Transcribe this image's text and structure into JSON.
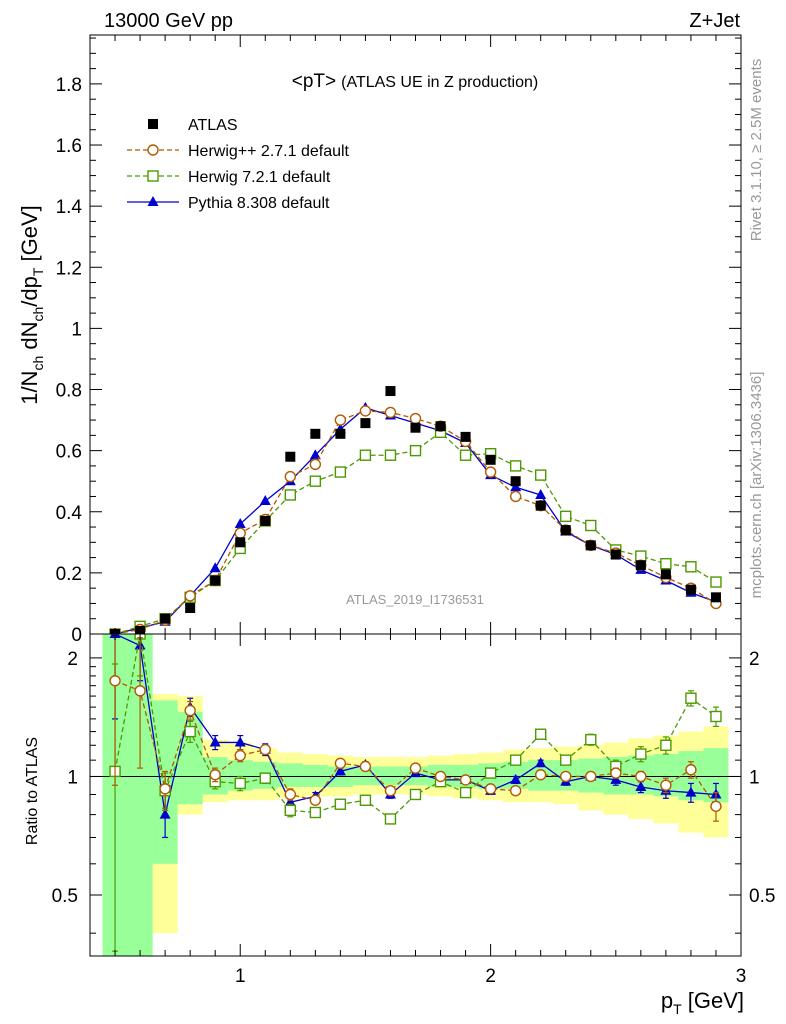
{
  "header": {
    "left": "13000 GeV pp",
    "right": "Z+Jet"
  },
  "side_text": {
    "rivet": "Rivet 3.1.10, ≥ 2.5M events",
    "mcplots": "mcplots.cern.ch [arXiv:1306.3436]"
  },
  "watermark": "ATLAS_2019_I1736531",
  "chart_data": [
    {
      "type": "scatter",
      "title": "<pT>",
      "subtitle": "(ATLAS UE in Z production)",
      "ylabel_parts": {
        "a": "1/N",
        "a_sub": "ch",
        "b": " dN",
        "b_sub": "ch",
        "c": "/dp",
        "c_sub": "T",
        "d": " [GeV]"
      },
      "xlabel": "",
      "xlim": [
        0.4,
        3.0
      ],
      "ylim": [
        0,
        1.96
      ],
      "yticks": [
        0,
        0.2,
        0.4,
        0.6,
        0.8,
        1,
        1.2,
        1.4,
        1.6,
        1.8
      ],
      "ytick_labels": [
        "0",
        "0.2",
        "0.4",
        "0.6",
        "0.8",
        "1",
        "1.2",
        "1.4",
        "1.6",
        "1.8"
      ],
      "legend": "top-left",
      "series": [
        {
          "name": "ATLAS",
          "color": "#000000",
          "marker": "filled-square",
          "line": "none",
          "x": [
            0.5,
            0.6,
            0.7,
            0.8,
            0.9,
            1.0,
            1.1,
            1.2,
            1.3,
            1.4,
            1.5,
            1.6,
            1.7,
            1.8,
            1.9,
            2.0,
            2.1,
            2.2,
            2.3,
            2.4,
            2.5,
            2.6,
            2.7,
            2.8,
            2.9
          ],
          "y": [
            0.0,
            0.01,
            0.05,
            0.085,
            0.175,
            0.3,
            0.37,
            0.58,
            0.655,
            0.655,
            0.69,
            0.795,
            0.675,
            0.68,
            0.645,
            0.57,
            0.5,
            0.42,
            0.34,
            0.29,
            0.26,
            0.225,
            0.195,
            0.145,
            0.12
          ]
        },
        {
          "name": "Herwig++ 2.7.1 default",
          "color": "#b35900",
          "marker": "open-circle",
          "line": "dashed",
          "x": [
            0.5,
            0.6,
            0.7,
            0.8,
            0.9,
            1.0,
            1.1,
            1.2,
            1.3,
            1.4,
            1.5,
            1.6,
            1.7,
            1.8,
            1.9,
            2.0,
            2.1,
            2.2,
            2.3,
            2.4,
            2.5,
            2.6,
            2.7,
            2.8,
            2.9
          ],
          "y": [
            0.0,
            0.015,
            0.045,
            0.125,
            0.175,
            0.33,
            0.375,
            0.515,
            0.555,
            0.7,
            0.73,
            0.725,
            0.705,
            0.68,
            0.63,
            0.53,
            0.45,
            0.42,
            0.34,
            0.29,
            0.265,
            0.225,
            0.185,
            0.15,
            0.1
          ]
        },
        {
          "name": "Herwig 7.2.1 default",
          "color": "#4d9900",
          "marker": "open-square",
          "line": "dashed",
          "x": [
            0.5,
            0.6,
            0.7,
            0.8,
            0.9,
            1.0,
            1.1,
            1.2,
            1.3,
            1.4,
            1.5,
            1.6,
            1.7,
            1.8,
            1.9,
            2.0,
            2.1,
            2.2,
            2.3,
            2.4,
            2.5,
            2.6,
            2.7,
            2.8,
            2.9
          ],
          "y": [
            0.0,
            0.025,
            0.05,
            0.12,
            0.175,
            0.28,
            0.37,
            0.455,
            0.5,
            0.53,
            0.585,
            0.585,
            0.6,
            0.66,
            0.585,
            0.59,
            0.55,
            0.52,
            0.385,
            0.355,
            0.275,
            0.255,
            0.23,
            0.22,
            0.17
          ]
        },
        {
          "name": "Pythia 8.308 default",
          "color": "#0000cc",
          "marker": "filled-triangle",
          "line": "solid",
          "x": [
            0.5,
            0.6,
            0.7,
            0.8,
            0.9,
            1.0,
            1.1,
            1.2,
            1.3,
            1.4,
            1.5,
            1.6,
            1.7,
            1.8,
            1.9,
            2.0,
            2.1,
            2.2,
            2.3,
            2.4,
            2.5,
            2.6,
            2.7,
            2.8,
            2.9
          ],
          "y": [
            0.0,
            0.02,
            0.04,
            0.125,
            0.215,
            0.36,
            0.435,
            0.5,
            0.585,
            0.67,
            0.74,
            0.715,
            0.69,
            0.665,
            0.625,
            0.52,
            0.48,
            0.455,
            0.335,
            0.29,
            0.26,
            0.21,
            0.175,
            0.135,
            0.105
          ]
        }
      ]
    },
    {
      "type": "scatter",
      "ylabel": "Ratio to ATLAS",
      "xlabel": "p",
      "xlabel_sub": "T",
      "xlabel_unit": " [GeV]",
      "xlim": [
        0.4,
        3.0
      ],
      "ylim": [
        0.35,
        2.3
      ],
      "ylog": true,
      "xticks": [
        1,
        2,
        3
      ],
      "xtick_labels": [
        "1",
        "2",
        "3"
      ],
      "yticks": [
        0.5,
        1,
        2
      ],
      "ytick_labels": [
        "0.5",
        "1",
        "2"
      ],
      "bands": {
        "x_edges": [
          0.45,
          0.55,
          0.65,
          0.75,
          0.85,
          0.95,
          1.05,
          1.15,
          1.25,
          1.35,
          1.45,
          1.55,
          1.65,
          1.75,
          1.85,
          1.95,
          2.05,
          2.15,
          2.25,
          2.35,
          2.45,
          2.55,
          2.65,
          2.75,
          2.85,
          2.95
        ],
        "yellow_low": [
          0.35,
          0.35,
          0.4,
          0.8,
          0.86,
          0.87,
          0.87,
          0.88,
          0.89,
          0.89,
          0.9,
          0.9,
          0.9,
          0.89,
          0.88,
          0.87,
          0.86,
          0.86,
          0.85,
          0.82,
          0.8,
          0.78,
          0.76,
          0.72,
          0.7
        ],
        "yellow_high": [
          2.3,
          2.3,
          1.62,
          1.6,
          1.24,
          1.22,
          1.18,
          1.15,
          1.14,
          1.13,
          1.12,
          1.12,
          1.12,
          1.13,
          1.14,
          1.15,
          1.17,
          1.18,
          1.19,
          1.2,
          1.22,
          1.25,
          1.27,
          1.3,
          1.34
        ],
        "green_low": [
          0.35,
          0.35,
          0.6,
          0.85,
          0.9,
          0.92,
          0.93,
          0.94,
          0.94,
          0.94,
          0.95,
          0.95,
          0.95,
          0.94,
          0.94,
          0.93,
          0.93,
          0.92,
          0.92,
          0.91,
          0.9,
          0.9,
          0.89,
          0.87,
          0.86
        ],
        "green_high": [
          2.3,
          2.3,
          1.56,
          1.46,
          1.12,
          1.1,
          1.09,
          1.08,
          1.07,
          1.06,
          1.06,
          1.06,
          1.06,
          1.07,
          1.07,
          1.08,
          1.09,
          1.1,
          1.1,
          1.11,
          1.12,
          1.13,
          1.14,
          1.16,
          1.18
        ]
      },
      "series": [
        {
          "name": "Herwig++ 2.7.1 default",
          "color": "#b35900",
          "marker": "open-circle",
          "line": "dashed",
          "x": [
            0.5,
            0.6,
            0.7,
            0.8,
            0.9,
            1.0,
            1.1,
            1.2,
            1.3,
            1.4,
            1.5,
            1.6,
            1.7,
            1.8,
            1.9,
            2.0,
            2.1,
            2.2,
            2.3,
            2.4,
            2.5,
            2.6,
            2.7,
            2.8,
            2.9
          ],
          "y": [
            1.75,
            1.65,
            0.93,
            1.47,
            1.01,
            1.13,
            1.17,
            0.9,
            0.87,
            1.08,
            1.06,
            0.92,
            1.05,
            1.0,
            0.98,
            0.93,
            0.92,
            1.01,
            1.0,
            1.0,
            1.02,
            1.0,
            0.95,
            1.04,
            0.84
          ],
          "err": [
            0.8,
            0.6,
            0.1,
            0.08,
            0.04,
            0.04,
            0.03,
            0.03,
            0.02,
            0.02,
            0.02,
            0.02,
            0.02,
            0.02,
            0.02,
            0.02,
            0.02,
            0.02,
            0.02,
            0.02,
            0.03,
            0.03,
            0.04,
            0.05,
            0.07
          ]
        },
        {
          "name": "Herwig 7.2.1 default",
          "color": "#4d9900",
          "marker": "open-square",
          "line": "dashed",
          "x": [
            0.5,
            0.6,
            0.7,
            0.8,
            0.9,
            1.0,
            1.1,
            1.2,
            1.3,
            1.4,
            1.5,
            1.6,
            1.7,
            1.8,
            1.9,
            2.0,
            2.1,
            2.2,
            2.3,
            2.4,
            2.5,
            2.6,
            2.7,
            2.8,
            2.9
          ],
          "y": [
            1.03,
            2.3,
            0.92,
            1.3,
            0.97,
            0.96,
            0.99,
            0.82,
            0.81,
            0.85,
            0.87,
            0.78,
            0.9,
            0.97,
            0.91,
            1.02,
            1.1,
            1.28,
            1.1,
            1.24,
            1.06,
            1.14,
            1.2,
            1.58,
            1.42
          ],
          "err": [
            0.9,
            0.5,
            0.1,
            0.08,
            0.04,
            0.04,
            0.03,
            0.03,
            0.02,
            0.02,
            0.02,
            0.02,
            0.02,
            0.02,
            0.02,
            0.02,
            0.03,
            0.03,
            0.03,
            0.04,
            0.04,
            0.05,
            0.06,
            0.07,
            0.08
          ]
        },
        {
          "name": "Pythia 8.308 default",
          "color": "#0000cc",
          "marker": "filled-triangle",
          "line": "solid",
          "x": [
            0.5,
            0.6,
            0.7,
            0.8,
            0.9,
            1.0,
            1.1,
            1.2,
            1.3,
            1.4,
            1.5,
            1.6,
            1.7,
            1.8,
            1.9,
            2.0,
            2.1,
            2.2,
            2.3,
            2.4,
            2.5,
            2.6,
            2.7,
            2.8,
            2.9
          ],
          "y": [
            2.3,
            2.15,
            0.8,
            1.5,
            1.22,
            1.22,
            1.17,
            0.86,
            0.89,
            1.03,
            1.07,
            0.9,
            1.02,
            0.98,
            0.98,
            0.92,
            0.98,
            1.08,
            0.97,
            1.0,
            0.98,
            0.94,
            0.92,
            0.91,
            0.9
          ],
          "err": [
            0.9,
            0.4,
            0.1,
            0.08,
            0.05,
            0.05,
            0.04,
            0.03,
            0.02,
            0.02,
            0.02,
            0.02,
            0.02,
            0.02,
            0.02,
            0.02,
            0.02,
            0.02,
            0.02,
            0.02,
            0.03,
            0.03,
            0.04,
            0.05,
            0.06
          ]
        }
      ]
    }
  ]
}
